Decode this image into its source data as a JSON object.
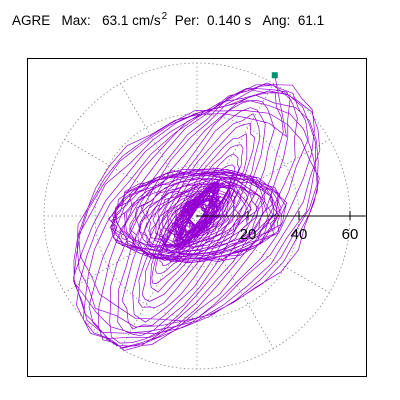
{
  "header": {
    "station": "AGRE",
    "max_label": "Max:",
    "max_value": "63.1",
    "max_unit": "cm/s",
    "max_unit_exp": "2",
    "per_label": "Per:",
    "per_value": "0.140 s",
    "ang_label": "Ang:",
    "ang_value": "61.1"
  },
  "chart_data": {
    "type": "polar-trajectory",
    "title": "AGRE Max: 63.1 cm/s2 Per: 0.140 s Ang: 61.1",
    "max_amplitude": 63.1,
    "period_s": 0.14,
    "angle_deg": 61.1,
    "radial_ticks": [
      20,
      40,
      60
    ],
    "radial_tick_labels": [
      "20",
      "40",
      "60"
    ],
    "rings": [
      20,
      40,
      60
    ],
    "spokes_deg": [
      0,
      30,
      60,
      90,
      120,
      150,
      180,
      210,
      240,
      270,
      300,
      330
    ],
    "grid": true,
    "max_point": {
      "x": 30.5,
      "y": 55.2
    },
    "colors": {
      "trace": "#9400d3",
      "grid": "#888888",
      "marker": "#009070",
      "frame": "#000000"
    }
  }
}
